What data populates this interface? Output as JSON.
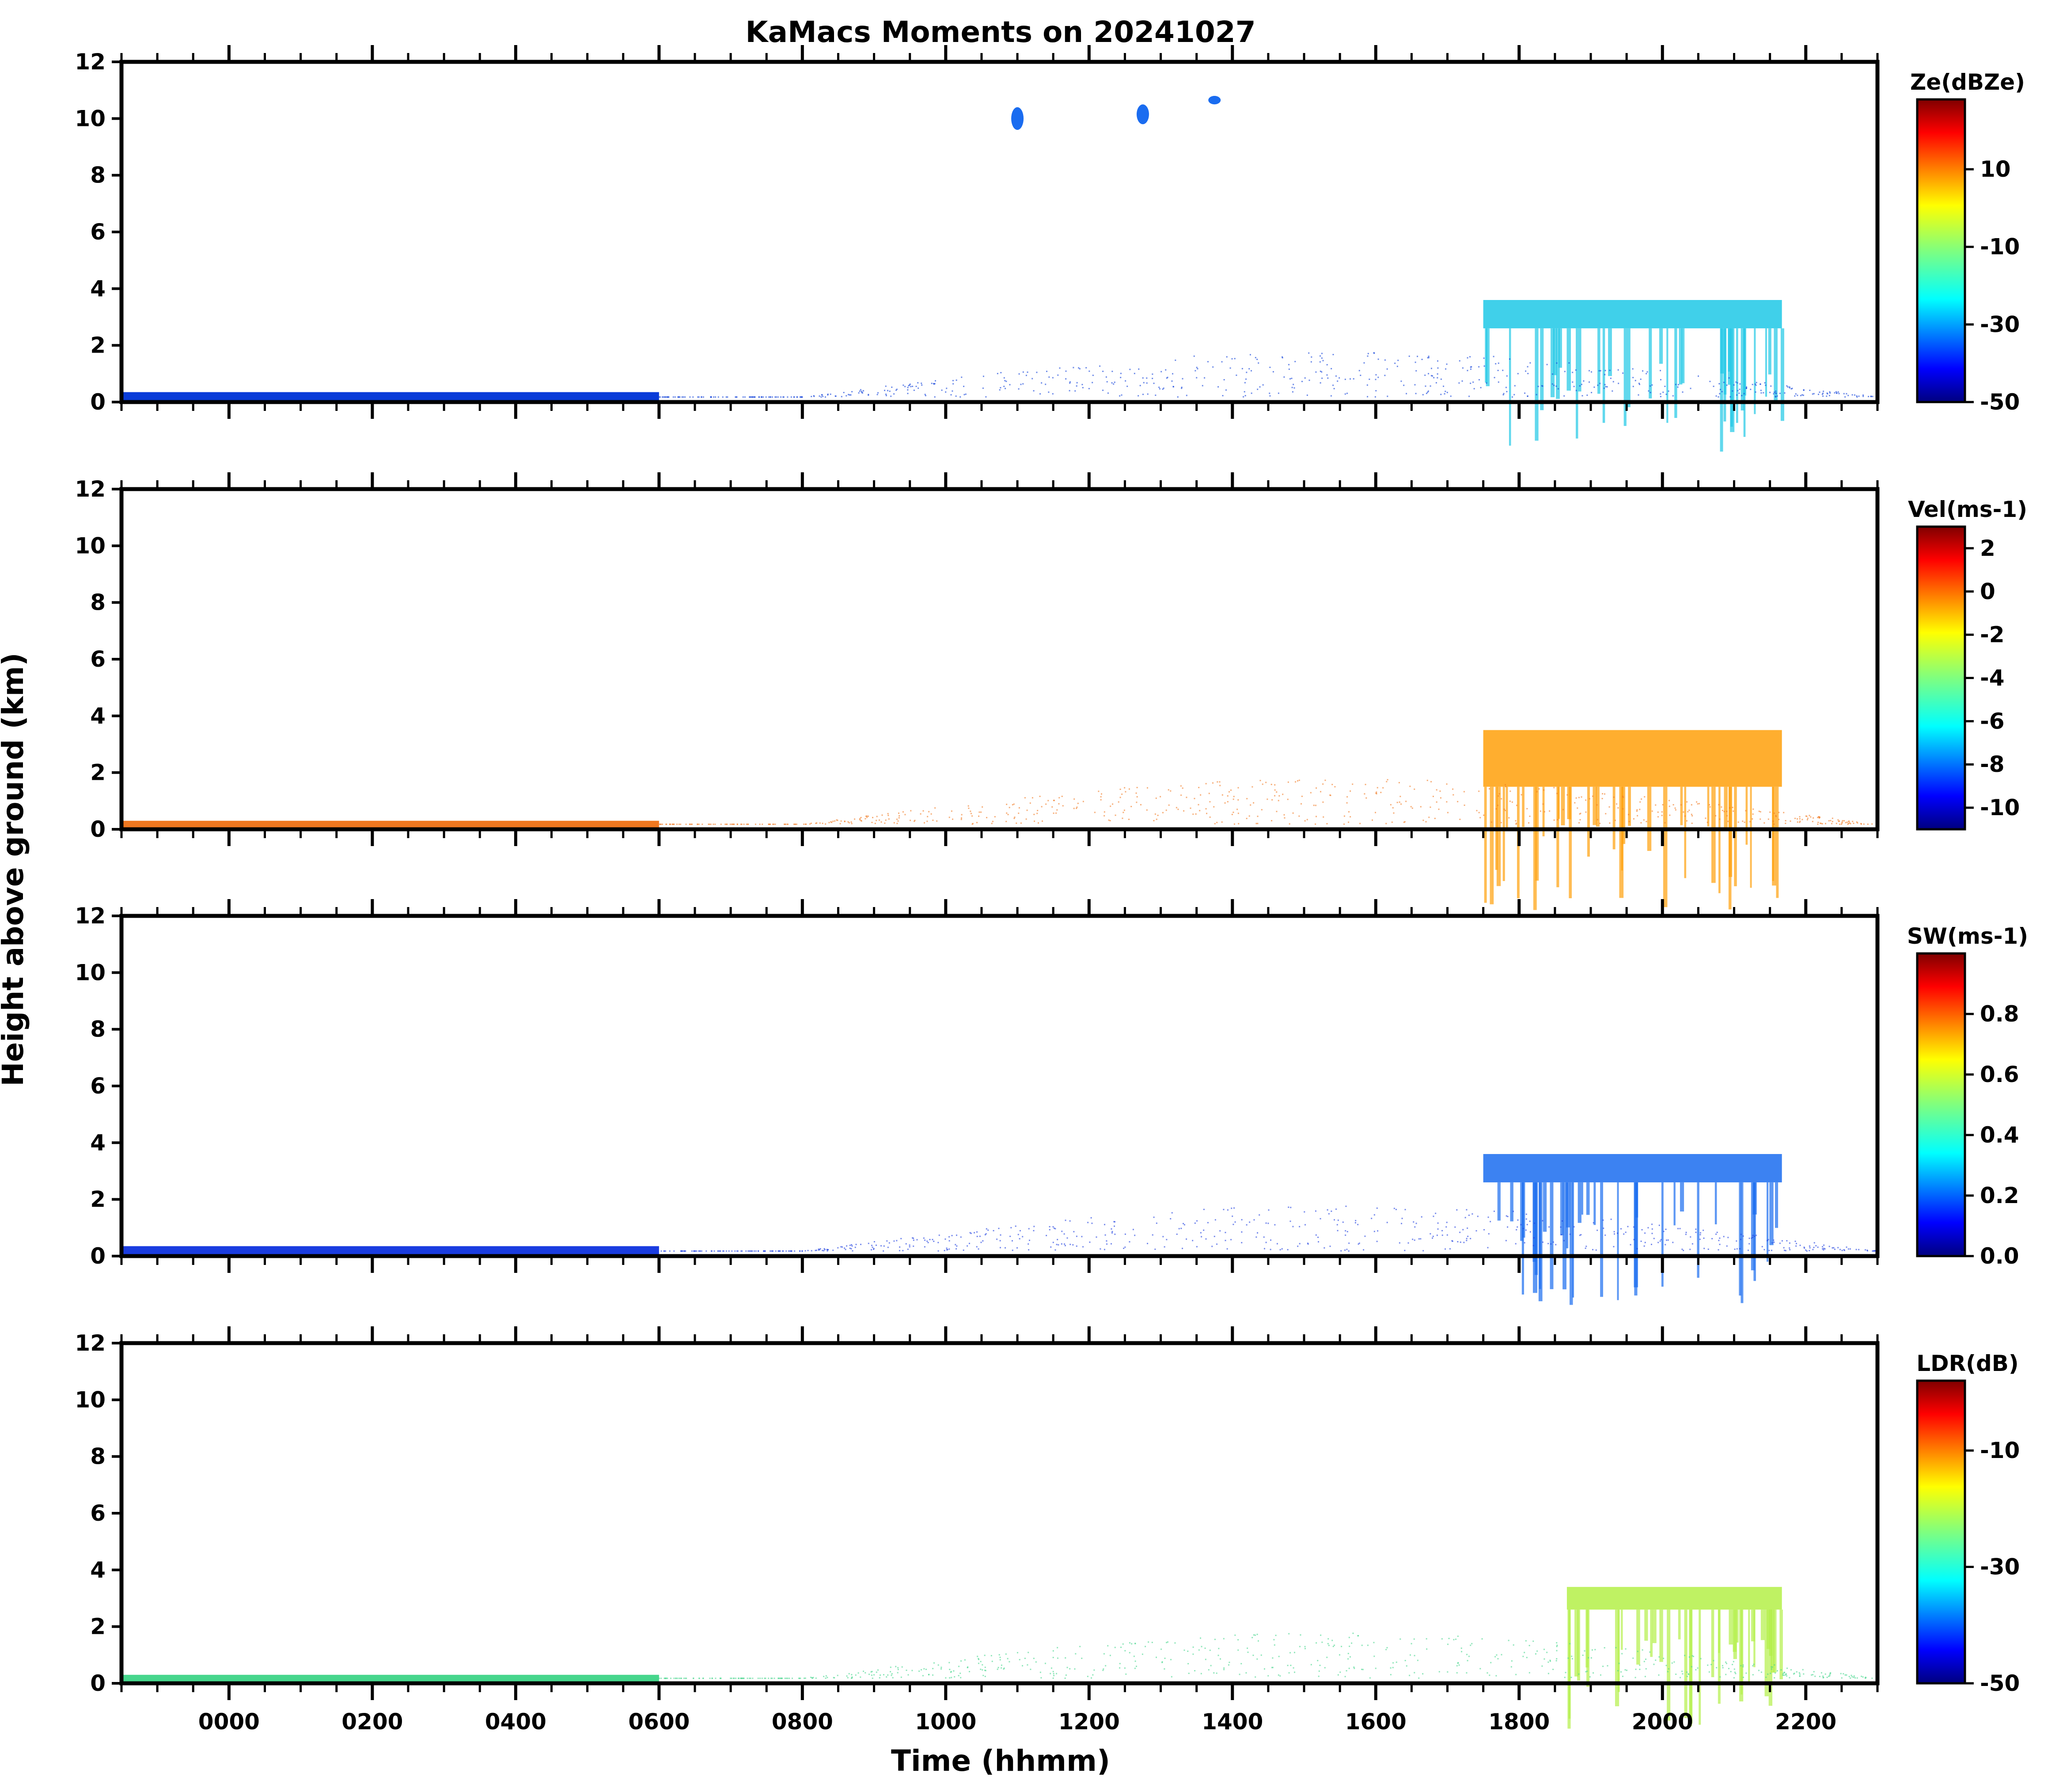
{
  "title": "KaMacs Moments on 20241027",
  "xlabel": "Time (hhmm)",
  "ylabel": "Height above ground (km)",
  "chart_data": {
    "type": "heatmap",
    "x_tick_labels": [
      "0000",
      "0200",
      "0400",
      "0600",
      "0800",
      "1000",
      "1200",
      "1400",
      "1600",
      "1800",
      "2000",
      "2200"
    ],
    "y_tick_labels": [
      "0",
      "2",
      "4",
      "6",
      "8",
      "10",
      "12"
    ],
    "ylim": [
      0,
      12
    ],
    "panels": [
      {
        "id": "ze",
        "colorbar_label": "Ze(dBZe)",
        "colorbar_ticks": [
          "10",
          "-10",
          "-30",
          "-50"
        ],
        "colorbar_range": [
          -50,
          28
        ],
        "colormap": "jet",
        "features": [
          {
            "kind": "surface-layer",
            "x_start_hhmm": "2300",
            "x_end_hhmm": "0600",
            "y_km": [
              0,
              0.35
            ],
            "color": "#0a3cd8"
          },
          {
            "kind": "cirrus",
            "x_hhmm": "1100",
            "y_km": [
              9.6,
              10.4
            ],
            "color": "#1a6cf0"
          },
          {
            "kind": "cirrus",
            "x_hhmm": "1245",
            "y_km": [
              9.8,
              10.5
            ],
            "color": "#1a6cf0"
          },
          {
            "kind": "cirrus",
            "x_hhmm": "1345",
            "y_km": [
              10.5,
              10.8
            ],
            "color": "#1a6cf0"
          },
          {
            "kind": "cloud-deck",
            "x_start_hhmm": "1730",
            "x_end_hhmm": "2140",
            "y_km": [
              2.6,
              3.6
            ],
            "color": "#1ec8e6"
          }
        ]
      },
      {
        "id": "vel",
        "colorbar_label": "Vel(ms-1)",
        "colorbar_ticks": [
          "2",
          "0",
          "-2",
          "-4",
          "-6",
          "-8",
          "-10"
        ],
        "colorbar_range": [
          -11,
          3
        ],
        "colormap": "jet",
        "features": [
          {
            "kind": "surface-layer",
            "x_start_hhmm": "2300",
            "x_end_hhmm": "0600",
            "y_km": [
              0,
              0.3
            ],
            "color": "#f07820"
          },
          {
            "kind": "cloud-deck",
            "x_start_hhmm": "1730",
            "x_end_hhmm": "2140",
            "y_km": [
              1.5,
              3.5
            ],
            "color": "#ffa00a"
          }
        ]
      },
      {
        "id": "sw",
        "colorbar_label": "SW(ms-1)",
        "colorbar_ticks": [
          "0.8",
          "0.6",
          "0.4",
          "0.2",
          "0.0"
        ],
        "colorbar_range": [
          0,
          1
        ],
        "colormap": "jet",
        "features": [
          {
            "kind": "surface-layer",
            "x_start_hhmm": "2300",
            "x_end_hhmm": "0600",
            "y_km": [
              0,
              0.35
            ],
            "color": "#1a3ce0"
          },
          {
            "kind": "cloud-deck",
            "x_start_hhmm": "1730",
            "x_end_hhmm": "2140",
            "y_km": [
              2.6,
              3.6
            ],
            "color": "#1a6cf0"
          }
        ]
      },
      {
        "id": "ldr",
        "colorbar_label": "LDR(dB)",
        "colorbar_ticks": [
          "-10",
          "-30",
          "-50"
        ],
        "colorbar_range": [
          -50,
          2
        ],
        "colormap": "jet",
        "features": [
          {
            "kind": "surface-layer",
            "x_start_hhmm": "2300",
            "x_end_hhmm": "0600",
            "y_km": [
              0,
              0.3
            ],
            "color": "#46d68c"
          },
          {
            "kind": "cloud-deck",
            "x_start_hhmm": "1840",
            "x_end_hhmm": "2140",
            "y_km": [
              2.6,
              3.4
            ],
            "color": "#b4f048"
          }
        ]
      }
    ]
  }
}
